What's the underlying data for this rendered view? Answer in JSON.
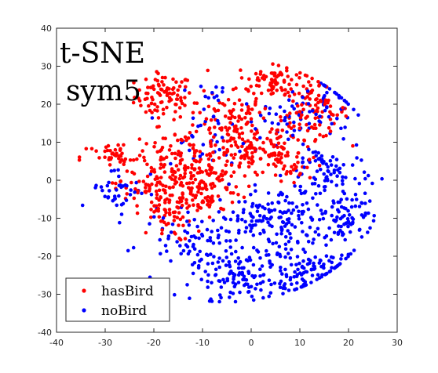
{
  "chart_data": {
    "type": "scatter",
    "title": "",
    "xlabel": "",
    "ylabel": "",
    "xlim": [
      -40,
      30
    ],
    "ylim": [
      -40,
      40
    ],
    "xticks": [
      "-40",
      "-30",
      "-20",
      "-10",
      "0",
      "10",
      "20",
      "30"
    ],
    "yticks": [
      "-40",
      "-30",
      "-20",
      "-10",
      "0",
      "10",
      "20",
      "30",
      "40"
    ],
    "annotations": [
      "t-SNE",
      "sym5"
    ],
    "legend_placement": "bottom-left",
    "grid": false,
    "series": [
      {
        "name": "hasBird",
        "color": "#ff0000",
        "clusters": [
          {
            "center": [
              -18,
              22
            ],
            "spread": [
              3.0,
              3.0
            ],
            "count": 90
          },
          {
            "center": [
              -5,
              17
            ],
            "spread": [
              4.0,
              3.0
            ],
            "count": 60
          },
          {
            "center": [
              5,
              26
            ],
            "spread": [
              4.0,
              2.5
            ],
            "count": 90
          },
          {
            "center": [
              13,
              18
            ],
            "spread": [
              3.5,
              3.5
            ],
            "count": 90
          },
          {
            "center": [
              0,
              8
            ],
            "spread": [
              5.5,
              4.0
            ],
            "count": 140
          },
          {
            "center": [
              -15,
              5
            ],
            "spread": [
              5.0,
              4.0
            ],
            "count": 110
          },
          {
            "center": [
              -28,
              6
            ],
            "spread": [
              3.5,
              2.0
            ],
            "count": 45
          },
          {
            "center": [
              -10,
              -2
            ],
            "spread": [
              4.0,
              4.0
            ],
            "count": 120
          },
          {
            "center": [
              -18,
              -8
            ],
            "spread": [
              3.0,
              4.0
            ],
            "count": 60
          },
          {
            "center": [
              -22,
              -2
            ],
            "spread": [
              3.0,
              3.0
            ],
            "count": 35
          },
          {
            "center": [
              8,
              4
            ],
            "spread": [
              3.5,
              3.0
            ],
            "count": 40
          }
        ]
      },
      {
        "name": "noBird",
        "color": "#0000ff",
        "clusters": [
          {
            "center": [
              5,
              -10
            ],
            "spread": [
              6.0,
              4.0
            ],
            "count": 150
          },
          {
            "center": [
              -2,
              -26
            ],
            "spread": [
              5.0,
              3.0
            ],
            "count": 110
          },
          {
            "center": [
              12,
              -26
            ],
            "spread": [
              4.0,
              3.0
            ],
            "count": 70
          },
          {
            "center": [
              20,
              -10
            ],
            "spread": [
              3.0,
              4.0
            ],
            "count": 80
          },
          {
            "center": [
              15,
              2
            ],
            "spread": [
              4.0,
              4.0
            ],
            "count": 80
          },
          {
            "center": [
              -12,
              -15
            ],
            "spread": [
              5.0,
              3.0
            ],
            "count": 70
          },
          {
            "center": [
              -27,
              -2
            ],
            "spread": [
              3.0,
              3.0
            ],
            "count": 40
          },
          {
            "center": [
              5,
              15
            ],
            "spread": [
              5.0,
              4.0
            ],
            "count": 50
          },
          {
            "center": [
              16,
              20
            ],
            "spread": [
              3.0,
              4.0
            ],
            "count": 40
          },
          {
            "center": [
              -10,
              10
            ],
            "spread": [
              4.0,
              4.0
            ],
            "count": 30
          },
          {
            "center": [
              -8,
              23
            ],
            "spread": [
              3.0,
              2.0
            ],
            "count": 12
          },
          {
            "center": [
              8,
              -20
            ],
            "spread": [
              6.0,
              3.0
            ],
            "count": 60
          }
        ]
      }
    ]
  }
}
